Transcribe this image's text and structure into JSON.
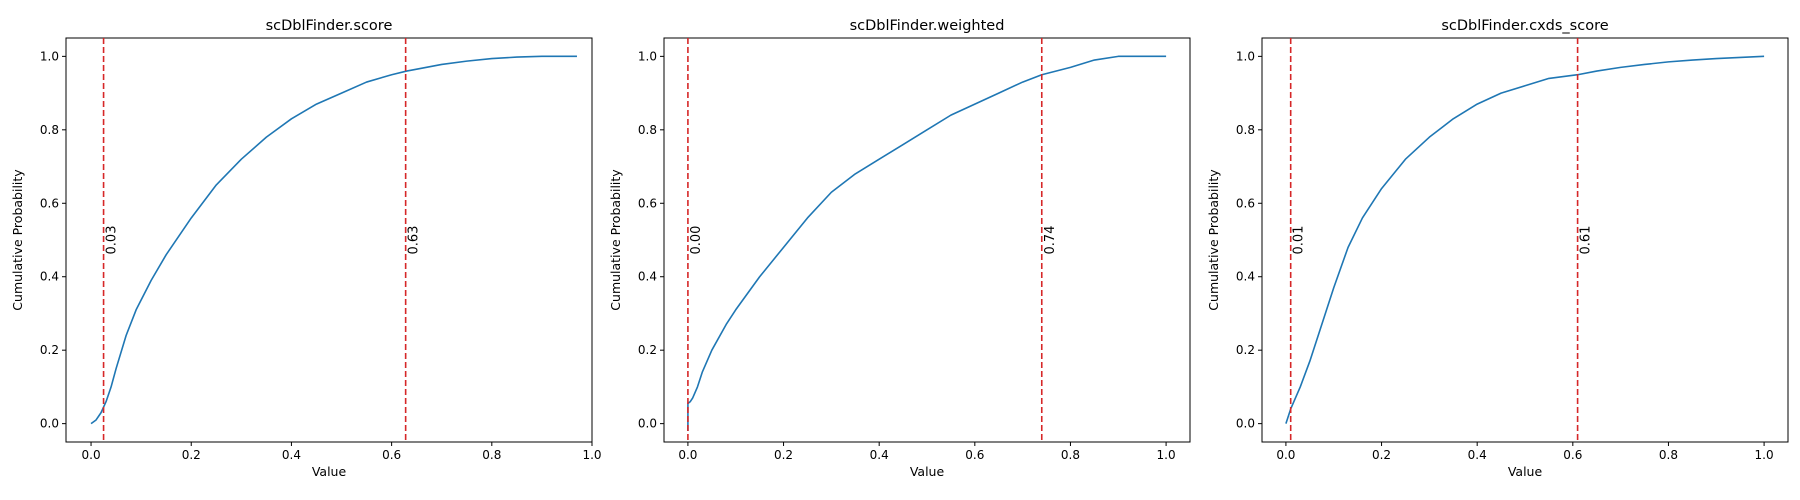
{
  "chart_data": [
    {
      "type": "line",
      "title": "scDblFinder.score",
      "xlabel": "Value",
      "ylabel": "Cumulative Probability",
      "xlim": [
        -0.05,
        1.0
      ],
      "ylim": [
        -0.05,
        1.05
      ],
      "xticks": [
        "0.0",
        "0.2",
        "0.4",
        "0.6",
        "0.8",
        "1.0"
      ],
      "yticks": [
        "0.0",
        "0.2",
        "0.4",
        "0.6",
        "0.8",
        "1.0"
      ],
      "grid": false,
      "series": [
        {
          "color": "#1f77b4",
          "x": [
            0.0,
            0.01,
            0.02,
            0.03,
            0.04,
            0.05,
            0.07,
            0.09,
            0.12,
            0.15,
            0.2,
            0.25,
            0.3,
            0.35,
            0.4,
            0.45,
            0.5,
            0.55,
            0.6,
            0.63,
            0.65,
            0.7,
            0.75,
            0.8,
            0.85,
            0.9,
            0.95,
            0.97
          ],
          "y": [
            0.0,
            0.01,
            0.03,
            0.06,
            0.1,
            0.15,
            0.24,
            0.31,
            0.39,
            0.46,
            0.56,
            0.65,
            0.72,
            0.78,
            0.83,
            0.87,
            0.9,
            0.93,
            0.95,
            0.96,
            0.965,
            0.978,
            0.987,
            0.994,
            0.998,
            1.0,
            1.0,
            1.0
          ]
        }
      ],
      "markers": [
        {
          "x": 0.025,
          "label": "0.03",
          "color": "#d62728"
        },
        {
          "x": 0.628,
          "label": "0.63",
          "color": "#d62728"
        }
      ]
    },
    {
      "type": "line",
      "title": "scDblFinder.weighted",
      "xlabel": "Value",
      "ylabel": "Cumulative Probability",
      "xlim": [
        -0.05,
        1.05
      ],
      "ylim": [
        -0.05,
        1.05
      ],
      "xticks": [
        "0.0",
        "0.2",
        "0.4",
        "0.6",
        "0.8",
        "1.0"
      ],
      "yticks": [
        "0.0",
        "0.2",
        "0.4",
        "0.6",
        "0.8",
        "1.0"
      ],
      "grid": false,
      "series": [
        {
          "color": "#1f77b4",
          "x": [
            0.0,
            0.0,
            0.005,
            0.01,
            0.02,
            0.03,
            0.05,
            0.08,
            0.1,
            0.15,
            0.2,
            0.25,
            0.3,
            0.35,
            0.4,
            0.45,
            0.5,
            0.55,
            0.6,
            0.65,
            0.7,
            0.74,
            0.8,
            0.85,
            0.9,
            0.95,
            1.0
          ],
          "y": [
            -0.02,
            0.055,
            0.06,
            0.07,
            0.1,
            0.14,
            0.2,
            0.27,
            0.31,
            0.4,
            0.48,
            0.56,
            0.63,
            0.68,
            0.72,
            0.76,
            0.8,
            0.84,
            0.87,
            0.9,
            0.93,
            0.95,
            0.97,
            0.99,
            1.0,
            1.0,
            1.0
          ]
        }
      ],
      "markers": [
        {
          "x": 0.0,
          "label": "0.00",
          "color": "#d62728"
        },
        {
          "x": 0.74,
          "label": "0.74",
          "color": "#d62728"
        }
      ]
    },
    {
      "type": "line",
      "title": "scDblFinder.cxds_score",
      "xlabel": "Value",
      "ylabel": "Cumulative Probability",
      "xlim": [
        -0.05,
        1.05
      ],
      "ylim": [
        -0.05,
        1.05
      ],
      "xticks": [
        "0.0",
        "0.2",
        "0.4",
        "0.6",
        "0.8",
        "1.0"
      ],
      "yticks": [
        "0.0",
        "0.2",
        "0.4",
        "0.6",
        "0.8",
        "1.0"
      ],
      "grid": false,
      "series": [
        {
          "color": "#1f77b4",
          "x": [
            0.0,
            0.01,
            0.02,
            0.03,
            0.05,
            0.07,
            0.1,
            0.13,
            0.16,
            0.2,
            0.25,
            0.3,
            0.35,
            0.4,
            0.45,
            0.5,
            0.55,
            0.61,
            0.65,
            0.7,
            0.75,
            0.8,
            0.85,
            0.9,
            0.95,
            1.0
          ],
          "y": [
            0.0,
            0.04,
            0.07,
            0.1,
            0.17,
            0.25,
            0.37,
            0.48,
            0.56,
            0.64,
            0.72,
            0.78,
            0.83,
            0.87,
            0.9,
            0.92,
            0.94,
            0.95,
            0.96,
            0.97,
            0.978,
            0.985,
            0.99,
            0.994,
            0.997,
            1.0
          ]
        }
      ],
      "markers": [
        {
          "x": 0.01,
          "label": "0.01",
          "color": "#d62728"
        },
        {
          "x": 0.61,
          "label": "0.61",
          "color": "#d62728"
        }
      ]
    }
  ]
}
